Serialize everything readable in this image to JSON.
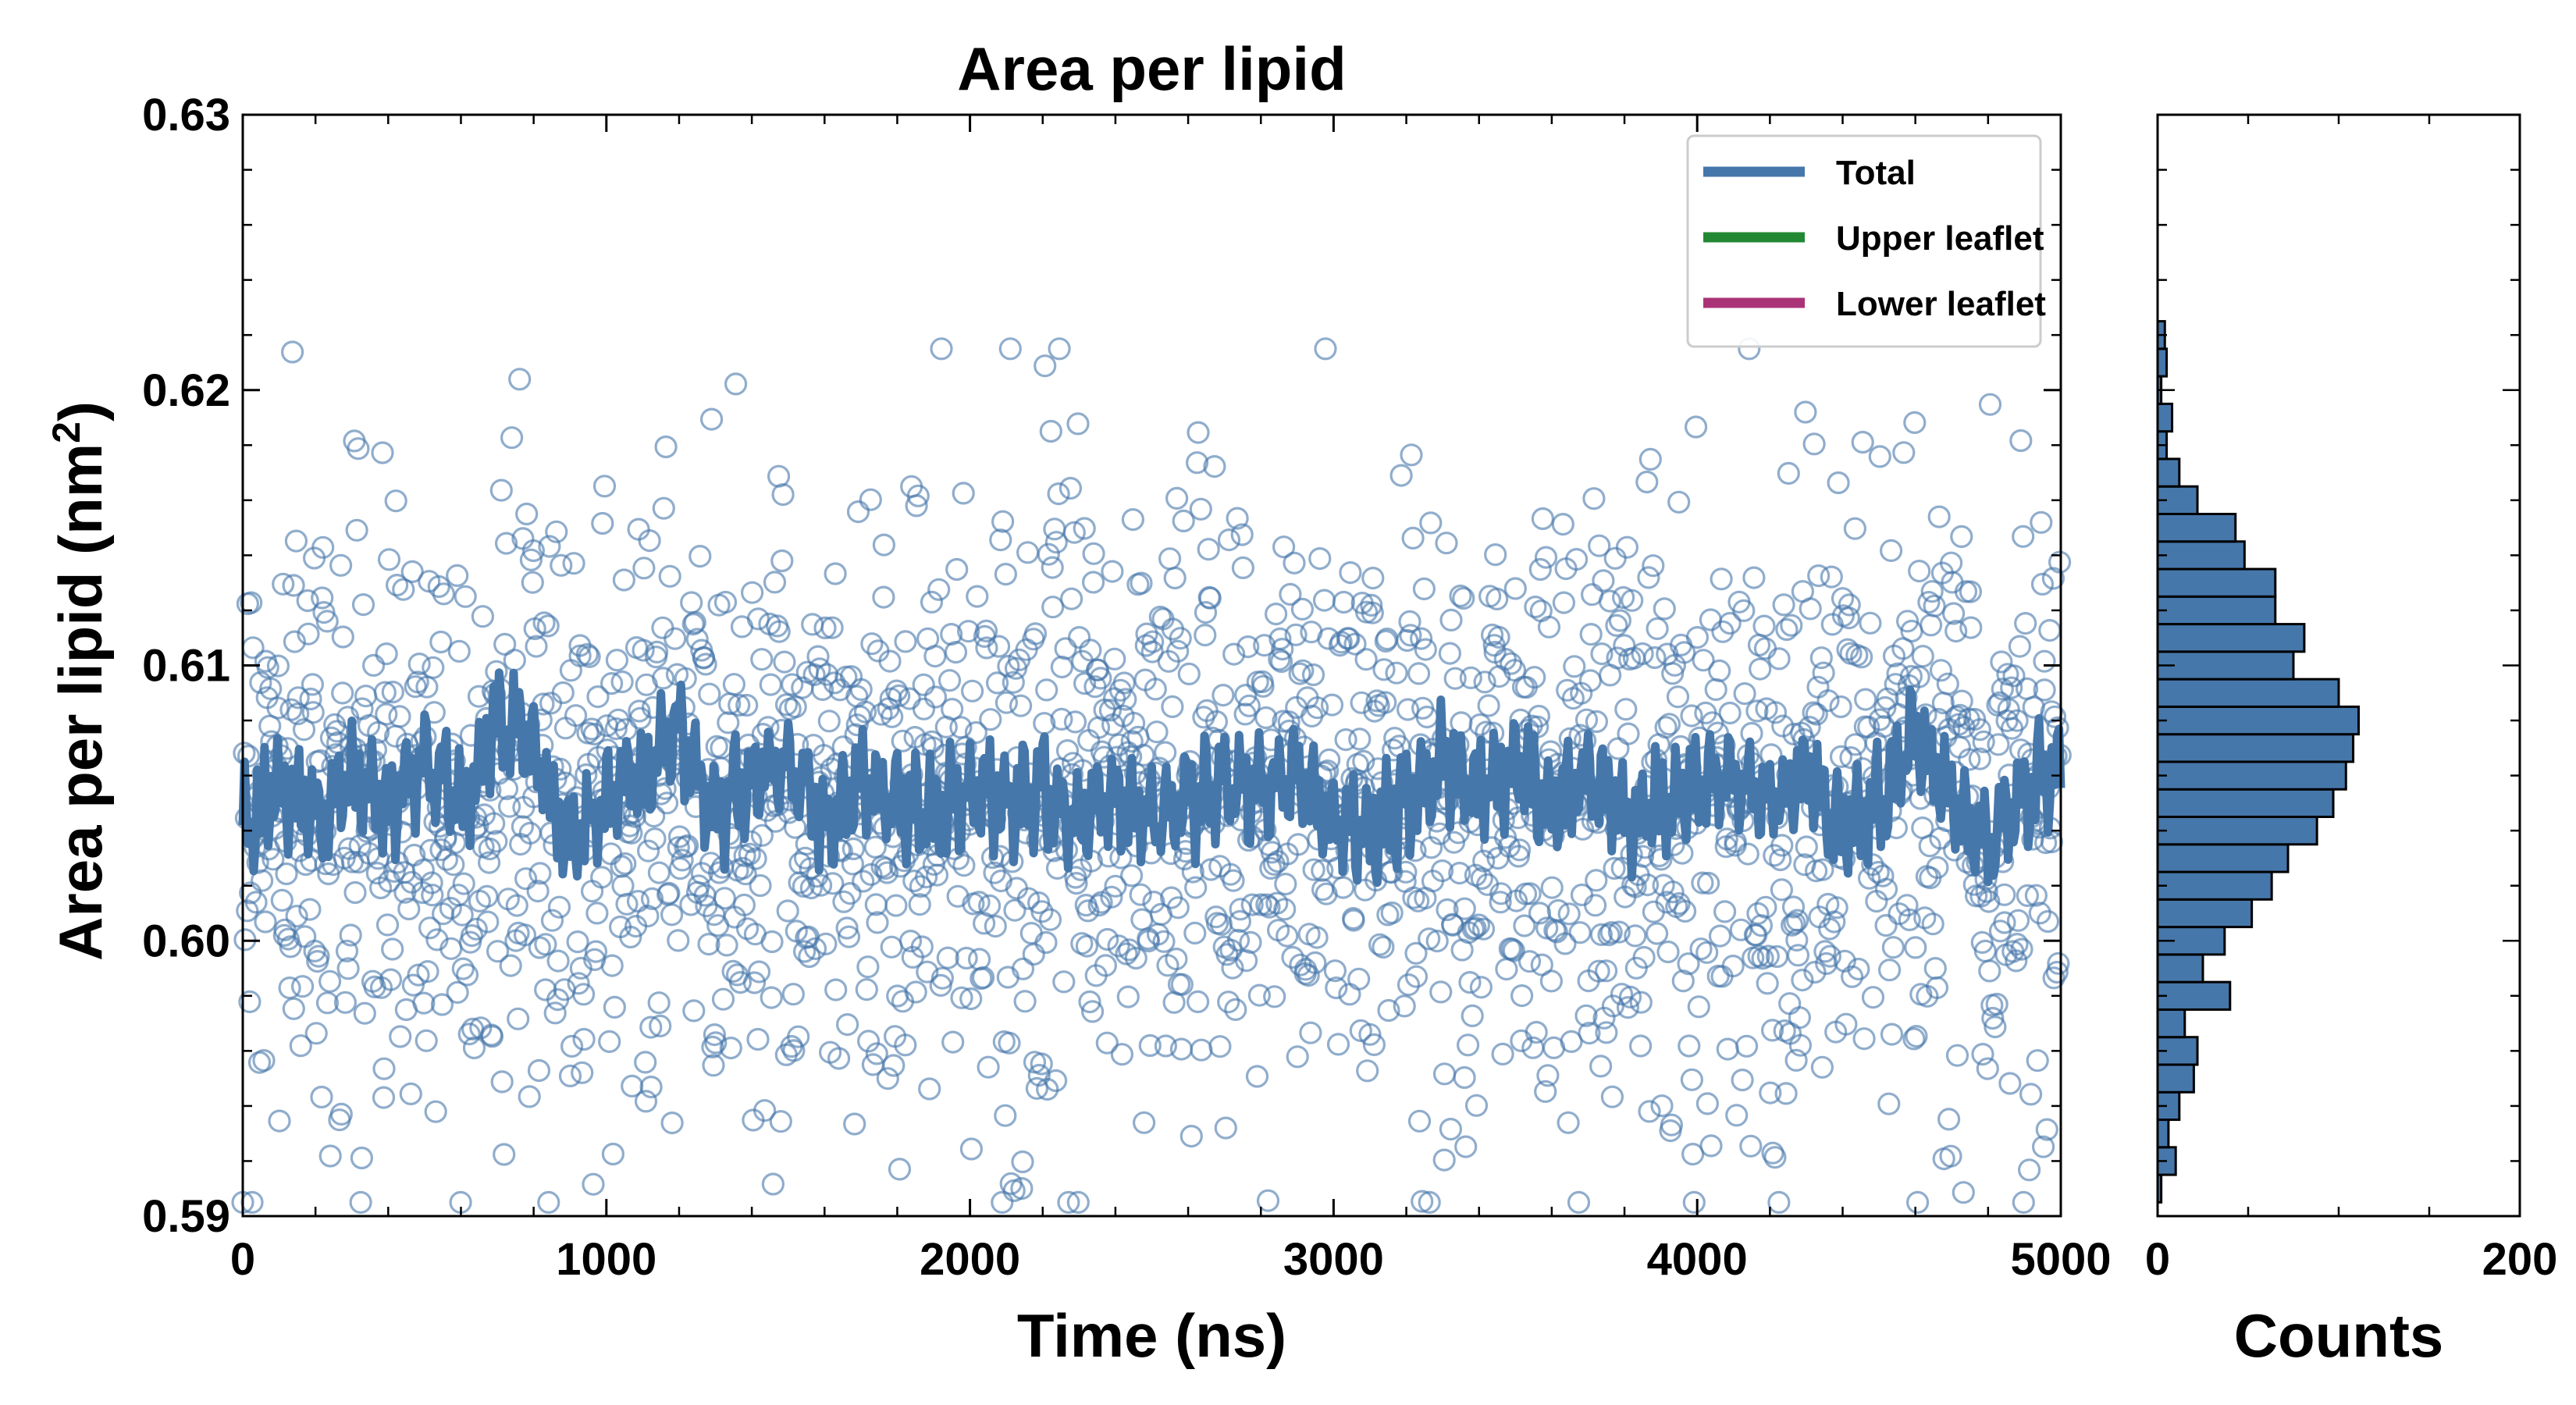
{
  "chart_data": [
    {
      "type": "scatter",
      "title": "Area per lipid",
      "xlabel": "Time (ns)",
      "ylabel": "Area per lipid (nm",
      "ylabel_sup": "2",
      "ylabel_close": ")",
      "xlim": [
        0,
        5000
      ],
      "ylim": [
        0.59,
        0.63
      ],
      "xticks": [
        "0",
        "1000",
        "2000",
        "3000",
        "4000",
        "5000"
      ],
      "yticks": [
        "0.59",
        "0.60",
        "0.61",
        "0.62",
        "0.63"
      ],
      "xtick_values": [
        0,
        1000,
        2000,
        3000,
        4000,
        5000
      ],
      "ytick_values": [
        0.59,
        0.6,
        0.61,
        0.62,
        0.63
      ],
      "grid": false,
      "legend_position": "top-right",
      "legend": [
        {
          "label": "Total",
          "color": "#4677aa"
        },
        {
          "label": "Upper leaflet",
          "color": "#228833"
        },
        {
          "label": "Lower leaflet",
          "color": "#aa3377"
        }
      ],
      "scatter_series": {
        "name": "Total",
        "color": "#4677aa",
        "marker": "open-circle",
        "n_points": 2000,
        "x_range": [
          0,
          5000
        ],
        "y_mean": 0.605,
        "y_std": 0.0055,
        "y_min": 0.5905,
        "y_max": 0.6215
      },
      "line_series": {
        "name": "Total",
        "color": "#4677aa",
        "x": [
          0,
          100,
          200,
          300,
          400,
          500,
          600,
          700,
          800,
          900,
          1000,
          1100,
          1200,
          1300,
          1400,
          1500,
          1600,
          1700,
          1800,
          1900,
          2000,
          2100,
          2200,
          2300,
          2400,
          2500,
          2600,
          2700,
          2800,
          2900,
          3000,
          3100,
          3200,
          3300,
          3400,
          3500,
          3600,
          3700,
          3800,
          3900,
          4000,
          4100,
          4200,
          4300,
          4400,
          4500,
          4600,
          4700,
          4800,
          4900,
          5000
        ],
        "y": [
          0.604,
          0.6055,
          0.6045,
          0.606,
          0.605,
          0.6065,
          0.605,
          0.608,
          0.607,
          0.6035,
          0.605,
          0.606,
          0.6075,
          0.6045,
          0.606,
          0.6065,
          0.604,
          0.606,
          0.605,
          0.6045,
          0.6055,
          0.605,
          0.6055,
          0.604,
          0.6055,
          0.6045,
          0.605,
          0.6055,
          0.6055,
          0.606,
          0.6045,
          0.604,
          0.605,
          0.6065,
          0.6055,
          0.6065,
          0.605,
          0.606,
          0.6045,
          0.605,
          0.6055,
          0.606,
          0.605,
          0.606,
          0.604,
          0.605,
          0.6075,
          0.605,
          0.6035,
          0.6055,
          0.606
        ]
      }
    },
    {
      "type": "bar",
      "orientation": "horizontal",
      "xlabel": "Counts",
      "xlim": [
        0,
        200
      ],
      "xticks": [
        "0",
        "200"
      ],
      "xtick_values": [
        0,
        200
      ],
      "ylim": [
        0.59,
        0.63
      ],
      "color": "#4677aa",
      "edgecolor": "#000000",
      "bin_width": 0.001,
      "bins": [
        0.591,
        0.592,
        0.593,
        0.594,
        0.595,
        0.596,
        0.597,
        0.598,
        0.599,
        0.6,
        0.601,
        0.602,
        0.603,
        0.604,
        0.605,
        0.606,
        0.607,
        0.608,
        0.609,
        0.61,
        0.611,
        0.612,
        0.613,
        0.614,
        0.615,
        0.616,
        0.617,
        0.618,
        0.619,
        0.62,
        0.621,
        0.622
      ],
      "counts": [
        2,
        10,
        6,
        12,
        20,
        22,
        15,
        40,
        25,
        37,
        52,
        63,
        72,
        88,
        97,
        104,
        108,
        111,
        100,
        75,
        81,
        65,
        65,
        48,
        43,
        22,
        12,
        5,
        8,
        2,
        5,
        4
      ]
    }
  ]
}
